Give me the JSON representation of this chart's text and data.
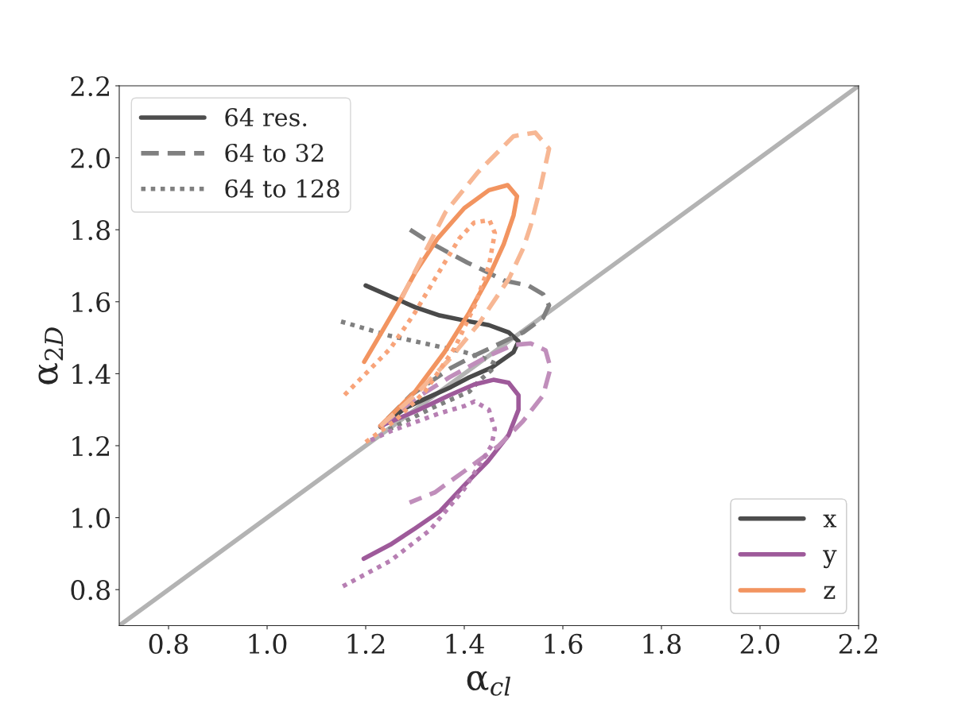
{
  "chart_data": {
    "type": "line",
    "xlabel": "α$_{cl}$",
    "ylabel": "α$_{2D}$",
    "xlim": [
      0.7,
      2.2
    ],
    "ylim": [
      0.7,
      2.2
    ],
    "xticks": [
      0.8,
      {
        "value": 1.0,
        "label": "1.0"
      },
      1.2,
      1.4,
      1.6,
      1.8,
      {
        "value": 2.0,
        "label": "2.0"
      },
      2.2
    ],
    "yticks": [
      0.8,
      {
        "value": 1.0,
        "label": "1.0"
      },
      1.2,
      1.4,
      1.6,
      1.8,
      {
        "value": 2.0,
        "label": "2.0"
      },
      2.2
    ],
    "grid": false,
    "legend": [
      "top left",
      "bottom right"
    ],
    "series": [
      {
        "color": "#b3b3b3",
        "line_style": "solid",
        "x": [
          0.7,
          2.2
        ],
        "values": [
          0.7,
          2.2
        ]
      },
      {
        "color": "#4a4a4a",
        "line_style": "solid",
        "x": [
          1.2,
          1.25,
          1.3,
          1.35,
          1.4,
          1.45,
          1.49,
          1.51,
          1.5,
          1.454,
          1.41,
          1.373,
          1.32,
          1.281,
          1.23
        ],
        "values": [
          1.645,
          1.615,
          1.585,
          1.562,
          1.548,
          1.535,
          1.515,
          1.49,
          1.46,
          1.416,
          1.39,
          1.363,
          1.33,
          1.305,
          1.252
        ]
      },
      {
        "color": "#808080",
        "line_style": "dashed",
        "x": [
          1.29,
          1.33,
          1.37,
          1.406,
          1.45,
          1.48,
          1.53,
          1.56,
          1.572,
          1.56,
          1.52,
          1.48,
          1.42,
          1.373,
          1.292,
          1.23
        ],
        "values": [
          1.8,
          1.765,
          1.735,
          1.709,
          1.68,
          1.659,
          1.645,
          1.621,
          1.59,
          1.555,
          1.515,
          1.489,
          1.45,
          1.416,
          1.341,
          1.255
        ]
      },
      {
        "color": "#808080",
        "line_style": "dotted",
        "x": [
          1.15,
          1.2,
          1.25,
          1.3,
          1.35,
          1.4,
          1.438,
          1.46,
          1.455,
          1.43,
          1.41,
          1.335,
          1.24
        ],
        "values": [
          1.545,
          1.525,
          1.505,
          1.49,
          1.475,
          1.46,
          1.444,
          1.43,
          1.41,
          1.38,
          1.35,
          1.305,
          1.24
        ]
      },
      {
        "color": "#9e5a9a",
        "line_style": "solid",
        "x": [
          1.23,
          1.3,
          1.37,
          1.42,
          1.459,
          1.49,
          1.51,
          1.51,
          1.49,
          1.448,
          1.4,
          1.351,
          1.3,
          1.25,
          1.196
        ],
        "values": [
          1.255,
          1.295,
          1.34,
          1.37,
          1.383,
          1.375,
          1.34,
          1.3,
          1.23,
          1.157,
          1.09,
          1.018,
          0.97,
          0.925,
          0.886
        ]
      },
      {
        "color": "#c08ebb",
        "line_style": "dashed",
        "x": [
          1.23,
          1.3,
          1.37,
          1.45,
          1.5,
          1.535,
          1.565,
          1.575,
          1.56,
          1.519,
          1.47,
          1.399,
          1.34,
          1.289
        ],
        "values": [
          1.255,
          1.33,
          1.39,
          1.45,
          1.48,
          1.484,
          1.465,
          1.416,
          1.34,
          1.268,
          1.2,
          1.128,
          1.07,
          1.042
        ]
      },
      {
        "color": "#b77fb3",
        "line_style": "dotted",
        "x": [
          1.21,
          1.25,
          1.3,
          1.35,
          1.4,
          1.421,
          1.45,
          1.462,
          1.455,
          1.443,
          1.4,
          1.33,
          1.25,
          1.152
        ],
        "values": [
          1.215,
          1.24,
          1.265,
          1.29,
          1.31,
          1.323,
          1.3,
          1.246,
          1.2,
          1.173,
          1.08,
          0.965,
          0.88,
          0.808
        ]
      },
      {
        "color": "#f29460",
        "line_style": "solid",
        "x": [
          1.23,
          1.3,
          1.36,
          1.41,
          1.45,
          1.48,
          1.5,
          1.507,
          1.488,
          1.45,
          1.4,
          1.346,
          1.3,
          1.265,
          1.23,
          1.197
        ],
        "values": [
          1.255,
          1.35,
          1.46,
          1.57,
          1.67,
          1.76,
          1.84,
          1.893,
          1.924,
          1.91,
          1.86,
          1.776,
          1.68,
          1.592,
          1.51,
          1.433
        ]
      },
      {
        "color": "#f7b794",
        "line_style": "dashed",
        "x": [
          1.23,
          1.3,
          1.37,
          1.43,
          1.491,
          1.52,
          1.535,
          1.555,
          1.572,
          1.544,
          1.5,
          1.427,
          1.362,
          1.293,
          1.27
        ],
        "values": [
          1.255,
          1.34,
          1.44,
          1.54,
          1.665,
          1.75,
          1.813,
          1.92,
          2.025,
          2.07,
          2.06,
          1.959,
          1.849,
          1.665,
          1.6
        ]
      },
      {
        "color": "#f8a47a",
        "line_style": "dotted",
        "x": [
          1.2,
          1.26,
          1.32,
          1.38,
          1.422,
          1.45,
          1.462,
          1.451,
          1.42,
          1.39,
          1.341,
          1.3,
          1.25,
          1.2,
          1.152
        ],
        "values": [
          1.21,
          1.27,
          1.35,
          1.47,
          1.592,
          1.7,
          1.791,
          1.827,
          1.82,
          1.776,
          1.665,
          1.57,
          1.47,
          1.4,
          1.334
        ]
      },
      {
        "name": "64 res.",
        "color": "#4d4d4d",
        "line_style": "solid"
      },
      {
        "name": "64 to 32",
        "color": "#808080",
        "line_style": "dashed"
      },
      {
        "name": "64 to 128",
        "color": "#808080",
        "line_style": "dotted"
      },
      {
        "name": "x",
        "color": "#4d4d4d",
        "line_style": "solid"
      },
      {
        "name": "y",
        "color": "#9e5a9a",
        "line_style": "solid"
      },
      {
        "name": "z",
        "color": "#f29460",
        "line_style": "solid"
      }
    ]
  }
}
